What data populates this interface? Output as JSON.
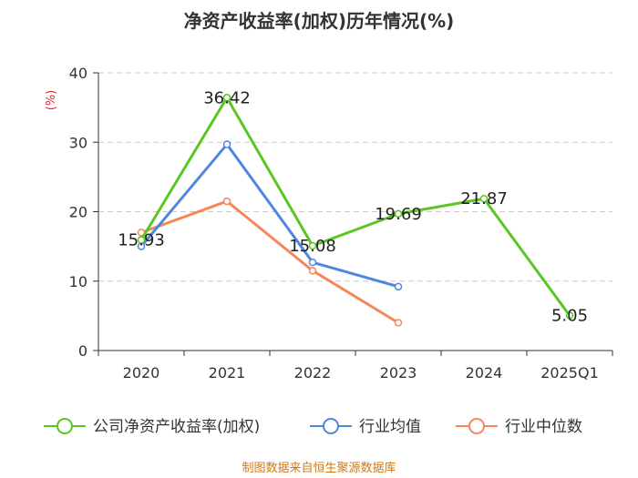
{
  "chart_data": {
    "type": "line",
    "title": "净资产收益率(加权)历年情况(%)",
    "ylabel": "(%)",
    "categories": [
      "2020",
      "2021",
      "2022",
      "2023",
      "2024",
      "2025Q1"
    ],
    "ylim": [
      0,
      40
    ],
    "yticks": [
      0,
      10,
      20,
      30,
      40
    ],
    "grid": "horizontal-dashed",
    "legend_position": "bottom",
    "series": [
      {
        "name": "公司净资产收益率(加权)",
        "color": "#5ac624",
        "values": [
          15.93,
          36.42,
          15.08,
          19.69,
          21.87,
          5.05
        ],
        "labels": [
          "15.93",
          "36.42",
          "15.08",
          "19.69",
          "21.87",
          "5.05"
        ]
      },
      {
        "name": "行业均值",
        "color": "#4f87e0",
        "values": [
          15.0,
          29.7,
          12.7,
          9.2,
          null,
          null
        ]
      },
      {
        "name": "行业中位数",
        "color": "#f5875b",
        "values": [
          17.0,
          21.5,
          11.5,
          4.0,
          null,
          null
        ]
      }
    ]
  },
  "source": "制图数据来自恒生聚源数据库"
}
